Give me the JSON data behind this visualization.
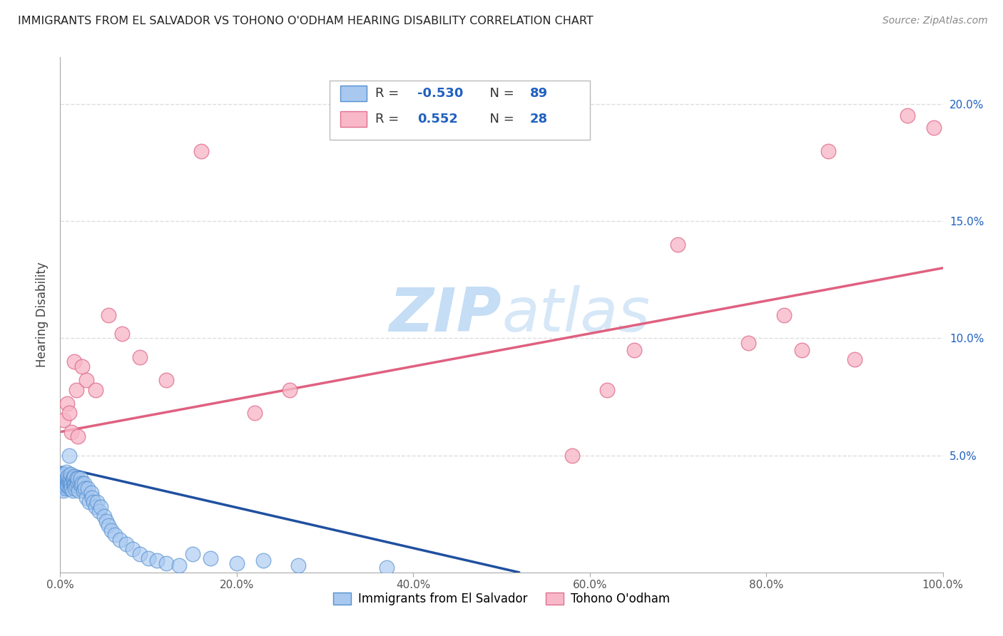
{
  "title": "IMMIGRANTS FROM EL SALVADOR VS TOHONO O'ODHAM HEARING DISABILITY CORRELATION CHART",
  "source": "Source: ZipAtlas.com",
  "ylabel": "Hearing Disability",
  "xlim": [
    0,
    1.0
  ],
  "ylim": [
    0,
    0.22
  ],
  "xticklabels": [
    "0.0%",
    "20.0%",
    "40.0%",
    "60.0%",
    "80.0%",
    "100.0%"
  ],
  "yticklabels_right": [
    "5.0%",
    "10.0%",
    "15.0%",
    "20.0%"
  ],
  "legend1_r": "-0.530",
  "legend1_n": "89",
  "legend2_r": "0.552",
  "legend2_n": "28",
  "watermark": "ZIPatlas",
  "background_color": "#ffffff",
  "grid_color": "#dddddd",
  "blue_dot_color": "#a8c8f0",
  "blue_dot_edge": "#5590d0",
  "pink_dot_color": "#f8b8c8",
  "pink_dot_edge": "#e07090",
  "blue_line_color": "#2050a0",
  "pink_line_color": "#e06080",
  "blue_x": [
    0.001,
    0.001,
    0.002,
    0.002,
    0.002,
    0.003,
    0.003,
    0.003,
    0.003,
    0.004,
    0.004,
    0.004,
    0.005,
    0.005,
    0.005,
    0.005,
    0.006,
    0.006,
    0.006,
    0.007,
    0.007,
    0.007,
    0.007,
    0.008,
    0.008,
    0.008,
    0.009,
    0.009,
    0.009,
    0.01,
    0.01,
    0.01,
    0.011,
    0.011,
    0.012,
    0.012,
    0.012,
    0.013,
    0.013,
    0.014,
    0.014,
    0.015,
    0.015,
    0.016,
    0.016,
    0.017,
    0.017,
    0.018,
    0.018,
    0.019,
    0.02,
    0.02,
    0.021,
    0.022,
    0.023,
    0.024,
    0.025,
    0.026,
    0.027,
    0.028,
    0.03,
    0.031,
    0.033,
    0.035,
    0.036,
    0.038,
    0.04,
    0.042,
    0.044,
    0.046,
    0.05,
    0.052,
    0.055,
    0.058,
    0.062,
    0.068,
    0.075,
    0.082,
    0.09,
    0.1,
    0.11,
    0.12,
    0.135,
    0.15,
    0.17,
    0.2,
    0.23,
    0.27,
    0.37
  ],
  "blue_y": [
    0.038,
    0.04,
    0.042,
    0.037,
    0.04,
    0.038,
    0.042,
    0.036,
    0.04,
    0.038,
    0.035,
    0.042,
    0.04,
    0.038,
    0.037,
    0.041,
    0.039,
    0.037,
    0.042,
    0.038,
    0.04,
    0.036,
    0.043,
    0.038,
    0.04,
    0.037,
    0.039,
    0.037,
    0.041,
    0.038,
    0.04,
    0.05,
    0.038,
    0.036,
    0.04,
    0.037,
    0.042,
    0.038,
    0.036,
    0.04,
    0.035,
    0.038,
    0.04,
    0.037,
    0.041,
    0.038,
    0.036,
    0.04,
    0.037,
    0.039,
    0.038,
    0.04,
    0.035,
    0.038,
    0.04,
    0.037,
    0.038,
    0.035,
    0.038,
    0.036,
    0.032,
    0.036,
    0.03,
    0.034,
    0.032,
    0.03,
    0.028,
    0.03,
    0.026,
    0.028,
    0.024,
    0.022,
    0.02,
    0.018,
    0.016,
    0.014,
    0.012,
    0.01,
    0.008,
    0.006,
    0.005,
    0.004,
    0.003,
    0.008,
    0.006,
    0.004,
    0.005,
    0.003,
    0.002
  ],
  "pink_x": [
    0.004,
    0.008,
    0.01,
    0.013,
    0.016,
    0.018,
    0.02,
    0.025,
    0.03,
    0.04,
    0.055,
    0.07,
    0.09,
    0.12,
    0.16,
    0.22,
    0.26,
    0.58,
    0.62,
    0.65,
    0.7,
    0.78,
    0.82,
    0.84,
    0.87,
    0.9,
    0.96,
    0.99
  ],
  "pink_y": [
    0.065,
    0.072,
    0.068,
    0.06,
    0.09,
    0.078,
    0.058,
    0.088,
    0.082,
    0.078,
    0.11,
    0.102,
    0.092,
    0.082,
    0.18,
    0.068,
    0.078,
    0.05,
    0.078,
    0.095,
    0.14,
    0.098,
    0.11,
    0.095,
    0.18,
    0.091,
    0.195,
    0.19
  ],
  "blue_line_x": [
    0.0,
    0.52
  ],
  "blue_line_y": [
    0.045,
    0.0
  ],
  "pink_line_x": [
    0.0,
    1.0
  ],
  "pink_line_y": [
    0.06,
    0.13
  ]
}
